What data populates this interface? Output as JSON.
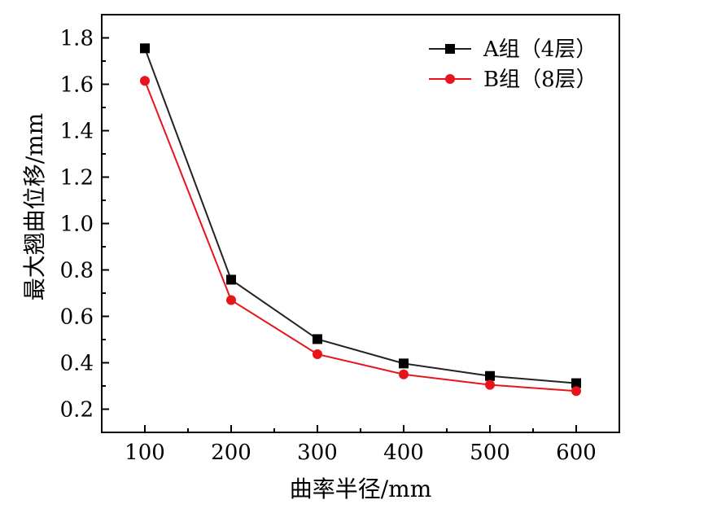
{
  "chart_data": {
    "type": "line",
    "xlabel": "曲率半径/mm",
    "ylabel": "最大翘曲位移/mm",
    "x": [
      100,
      200,
      300,
      400,
      500,
      600
    ],
    "xticks": [
      "100",
      "200",
      "300",
      "400",
      "500",
      "600"
    ],
    "yticks": [
      "0.2",
      "0.4",
      "0.6",
      "0.8",
      "1.0",
      "1.2",
      "1.4",
      "1.6",
      "1.8"
    ],
    "xlim": [
      50,
      650
    ],
    "ylim": [
      0.1,
      1.9
    ],
    "grid": false,
    "legend_position": "top-right",
    "series": [
      {
        "name": "A组（4层）",
        "color": "#222222",
        "marker": "square",
        "values": [
          1.755,
          0.758,
          0.502,
          0.397,
          0.343,
          0.312
        ]
      },
      {
        "name": "B组（8层）",
        "color": "#e8141c",
        "marker": "circle",
        "values": [
          1.615,
          0.67,
          0.437,
          0.35,
          0.305,
          0.278
        ]
      }
    ]
  }
}
